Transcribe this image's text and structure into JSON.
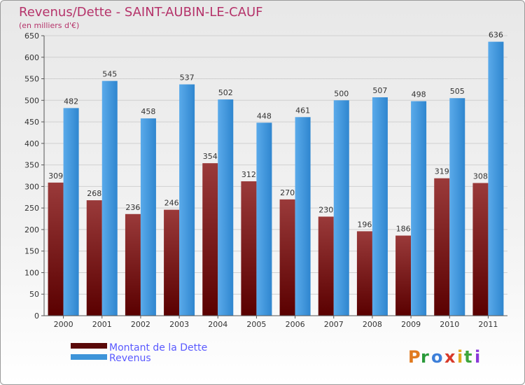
{
  "chart_data": {
    "type": "bar",
    "title": "Revenus/Dette - SAINT-AUBIN-LE-CAUF",
    "subtitle": "(en milliers d'€)",
    "categories": [
      "2000",
      "2001",
      "2002",
      "2003",
      "2004",
      "2005",
      "2006",
      "2007",
      "2008",
      "2009",
      "2010",
      "2011"
    ],
    "series": [
      {
        "name": "Montant de la Dette",
        "color": "#7a1c1c",
        "values": [
          309,
          268,
          236,
          246,
          354,
          312,
          270,
          230,
          196,
          186,
          319,
          308
        ]
      },
      {
        "name": "Revenus",
        "color": "#3d94d9",
        "values": [
          482,
          545,
          458,
          537,
          502,
          448,
          461,
          500,
          507,
          498,
          505,
          636
        ]
      }
    ],
    "ylim": [
      0,
      650
    ],
    "yticks": [
      0,
      50,
      100,
      150,
      200,
      250,
      300,
      350,
      400,
      450,
      500,
      550,
      600,
      650
    ],
    "grid": true,
    "legend_position": "bottom-left"
  },
  "branding": {
    "logo_letters": [
      "P",
      "r",
      "o",
      "x",
      "i",
      "t",
      "i"
    ],
    "logo_colors": [
      "#e07a1f",
      "#2a9a3a",
      "#3d7fd9",
      "#d83a2a",
      "#e0a81f",
      "#3da53a",
      "#8a3ad9"
    ]
  }
}
